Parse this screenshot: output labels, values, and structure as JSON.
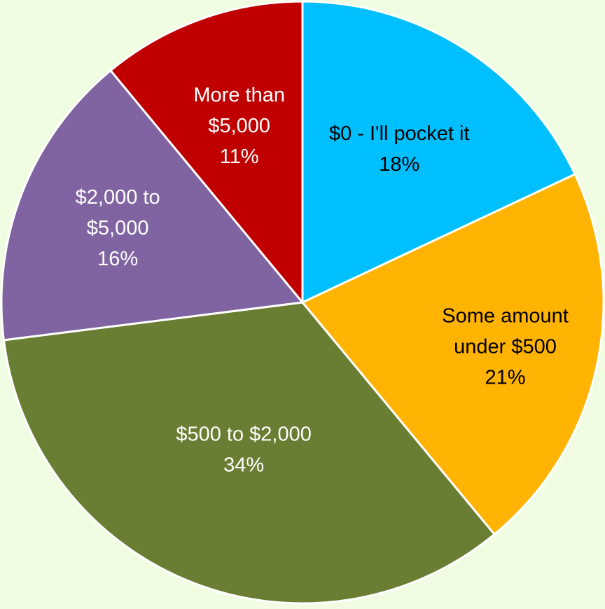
{
  "chart_data": {
    "type": "pie",
    "title": "",
    "start_angle_deg": 0,
    "direction": "clockwise",
    "slices": [
      {
        "label": "$0 - I'll pocket it",
        "value": 18,
        "display": "18%",
        "label_lines": [
          "$0 - I'll pocket it"
        ],
        "color": "#00bfff",
        "text_color": "#000000"
      },
      {
        "label": "Some amount under $500",
        "value": 21,
        "display": "21%",
        "label_lines": [
          "Some amount",
          "under $500"
        ],
        "color": "#ffb302",
        "text_color": "#000000"
      },
      {
        "label": "$500 to $2,000",
        "value": 34,
        "display": "34%",
        "label_lines": [
          "$500 to $2,000"
        ],
        "color": "#6a7e33",
        "text_color": "#ffffff"
      },
      {
        "label": "$2,000 to $5,000",
        "value": 16,
        "display": "16%",
        "label_lines": [
          "$2,000 to",
          "$5,000"
        ],
        "color": "#8064a2",
        "text_color": "#ffffff"
      },
      {
        "label": "More than $5,000",
        "value": 11,
        "display": "11%",
        "label_lines": [
          "More than",
          "$5,000"
        ],
        "color": "#c00000",
        "text_color": "#ffffff"
      }
    ]
  },
  "colors": {
    "background": "#f1fde2",
    "slice_border": "#ffffff"
  }
}
